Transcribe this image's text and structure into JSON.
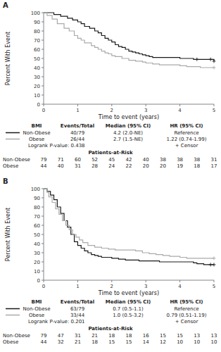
{
  "chart_data": [
    {
      "type": "step",
      "title": "A",
      "x_label": "Time to event (years)",
      "y_label": "Percent With Event",
      "xlim": [
        0,
        5
      ],
      "ylim": [
        0,
        100
      ],
      "xticks": [
        0,
        1,
        2,
        3,
        4,
        5
      ],
      "yticks": [
        0,
        10,
        20,
        30,
        40,
        50,
        60,
        70,
        80,
        90,
        100
      ],
      "legend_headers": [
        "BMI",
        "Events/Total",
        "Median (95% CI)",
        "HR (95% CI)"
      ],
      "logrank": "Logrank P-value:  0.438",
      "censor_label": "+ Censor",
      "risk_title": "Patients-at-Risk",
      "risk_times": [
        0,
        0.5,
        1,
        1.5,
        2,
        2.5,
        3,
        3.5,
        4,
        4.5,
        5
      ],
      "series": [
        {
          "name": "Non-Obese",
          "color": "#1a1a1a",
          "x": [
            0,
            0.15,
            0.3,
            0.5,
            0.7,
            0.85,
            1.0,
            1.1,
            1.2,
            1.35,
            1.5,
            1.6,
            1.7,
            1.8,
            1.9,
            2.0,
            2.1,
            2.2,
            2.3,
            2.4,
            2.5,
            2.6,
            2.7,
            2.8,
            2.9,
            3.0,
            3.1,
            3.2,
            3.4,
            3.6,
            3.8,
            4.0,
            4.2,
            4.4,
            4.6,
            4.8,
            5.0
          ],
          "values": [
            100,
            100,
            98,
            96,
            94,
            92,
            90,
            88,
            85,
            83,
            80,
            78,
            75,
            72,
            70,
            68,
            65,
            63,
            62,
            60,
            58,
            57,
            56,
            55,
            54,
            53,
            52,
            51,
            51,
            51,
            51,
            50,
            50,
            49,
            49,
            49,
            47
          ],
          "censor_x": [
            4.5,
            4.9,
            5.0
          ],
          "censor_values": [
            49,
            49,
            47
          ],
          "events": "40/79",
          "median": "4.2 (2.0-NE)",
          "hr": "Reference",
          "at_risk": [
            79,
            71,
            60,
            52,
            45,
            42,
            40,
            38,
            38,
            38,
            31
          ]
        },
        {
          "name": "Obese",
          "color": "#aaaaaa",
          "x": [
            0,
            0.1,
            0.25,
            0.4,
            0.6,
            0.75,
            0.9,
            1.0,
            1.1,
            1.2,
            1.4,
            1.5,
            1.6,
            1.7,
            1.8,
            1.9,
            2.0,
            2.1,
            2.3,
            2.5,
            2.7,
            2.9,
            3.0,
            3.2,
            3.4,
            3.6,
            3.8,
            4.0,
            4.2,
            4.4,
            4.6,
            5.0
          ],
          "values": [
            100,
            97,
            93,
            88,
            83,
            80,
            75,
            72,
            70,
            67,
            64,
            62,
            60,
            58,
            56,
            55,
            53,
            52,
            50,
            48,
            47,
            46,
            45,
            44,
            43,
            43,
            43,
            42,
            41,
            41,
            40,
            40
          ],
          "censor_x": [
            5.0
          ],
          "censor_values": [
            40
          ],
          "events": "26/44",
          "median": "2.7 (1.5-NE)",
          "hr": "1.22 (0.74-1.99)",
          "at_risk": [
            44,
            40,
            31,
            28,
            24,
            22,
            20,
            20,
            19,
            18,
            17
          ]
        }
      ]
    },
    {
      "type": "step",
      "title": "B",
      "x_label": "Time to event (years)",
      "y_label": "Percent With Event",
      "xlim": [
        0,
        5
      ],
      "ylim": [
        0,
        100
      ],
      "xticks": [
        0,
        1,
        2,
        3,
        4,
        5
      ],
      "yticks": [
        0,
        10,
        20,
        30,
        40,
        50,
        60,
        70,
        80,
        90,
        100
      ],
      "legend_headers": [
        "BMI",
        "Events/Total",
        "Median (95% CI)",
        "HR (95% CI)"
      ],
      "logrank": "Logrank P-value:  0.201",
      "censor_label": "+ Censor",
      "risk_title": "Patients-at-Risk",
      "risk_times": [
        0,
        0.5,
        1,
        1.5,
        2,
        2.5,
        3,
        3.5,
        4,
        4.5,
        5
      ],
      "series": [
        {
          "name": "Non-Obese",
          "color": "#1a1a1a",
          "x": [
            0,
            0.1,
            0.2,
            0.3,
            0.4,
            0.5,
            0.6,
            0.7,
            0.8,
            0.9,
            1.0,
            1.1,
            1.2,
            1.3,
            1.4,
            1.5,
            1.6,
            1.7,
            1.8,
            2.0,
            2.2,
            2.4,
            2.6,
            2.8,
            3.0,
            3.2,
            3.4,
            3.6,
            4.0,
            4.4,
            4.5,
            4.7,
            4.9,
            5.0
          ],
          "values": [
            100,
            97,
            93,
            88,
            80,
            73,
            65,
            58,
            50,
            42,
            38,
            35,
            32,
            30,
            28,
            27,
            26,
            25,
            25,
            24,
            23,
            22,
            22,
            21,
            21,
            21,
            20,
            20,
            20,
            19,
            18,
            17,
            17,
            17
          ],
          "censor_x": [
            4.9,
            5.0
          ],
          "censor_values": [
            17,
            17
          ],
          "events": "63/79",
          "median": "0.7 (0.5-1.1)",
          "hr": "Reference",
          "at_risk": [
            79,
            47,
            31,
            21,
            18,
            18,
            16,
            15,
            15,
            13,
            13
          ]
        },
        {
          "name": "Obese",
          "color": "#aaaaaa",
          "x": [
            0,
            0.1,
            0.15,
            0.25,
            0.35,
            0.45,
            0.55,
            0.65,
            0.75,
            0.85,
            0.95,
            1.05,
            1.15,
            1.3,
            1.5,
            1.7,
            1.9,
            2.1,
            2.3,
            2.5,
            2.7,
            2.9,
            3.1,
            3.3,
            3.5,
            3.7,
            4.0,
            4.2,
            4.4,
            4.6,
            4.8,
            5.0
          ],
          "values": [
            100,
            96,
            91,
            85,
            78,
            72,
            65,
            60,
            55,
            50,
            47,
            44,
            41,
            38,
            36,
            35,
            34,
            33,
            33,
            33,
            32,
            30,
            29,
            28,
            27,
            26,
            25,
            24,
            24,
            24,
            24,
            24
          ],
          "censor_x": [
            5.0
          ],
          "censor_values": [
            24
          ],
          "events": "33/44",
          "median": "1.0 (0.5-3.2)",
          "hr": "0.79 (0.51-1.19)",
          "at_risk": [
            44,
            32,
            21,
            18,
            15,
            15,
            14,
            12,
            10,
            10,
            10
          ]
        }
      ]
    }
  ]
}
